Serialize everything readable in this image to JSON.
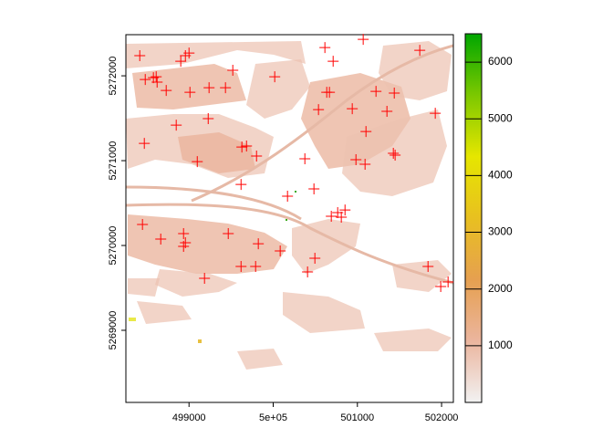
{
  "chart_data": {
    "type": "scatter",
    "marker": "+",
    "color": "#ff0000",
    "x": [
      498415,
      498480,
      498577,
      498621,
      498610,
      498729,
      498902,
      498957,
      499000,
      499011,
      499238,
      499433,
      499520,
      500018,
      500614,
      500712,
      500636,
      500668,
      500538,
      500939,
      501221,
      501438,
      501351,
      501741,
      501069,
      501925,
      498469,
      498848,
      499228,
      499098,
      499628,
      499683,
      499802,
      499618,
      500170,
      500376,
      500484,
      501102,
      500983,
      501091,
      501427,
      501448,
      498447,
      498664,
      498935,
      498957,
      498935,
      499466,
      499823,
      500083,
      500495,
      499618,
      499791,
      500408,
      499184,
      500690,
      500766,
      500809,
      501839,
      501990,
      502077,
      500853
    ],
    "values": [
      5272237,
      5271957,
      5271978,
      5271925,
      5271989,
      5271828,
      5272172,
      5272237,
      5272269,
      5271806,
      5271860,
      5271860,
      5272065,
      5271989,
      5272333,
      5272172,
      5271806,
      5271806,
      5271602,
      5271613,
      5271817,
      5271796,
      5271581,
      5272301,
      5272430,
      5271559,
      5271204,
      5271419,
      5271495,
      5270989,
      5271161,
      5271172,
      5271054,
      5270720,
      5270581,
      5271022,
      5270667,
      5271344,
      5271011,
      5270957,
      5271086,
      5271065,
      5270247,
      5270075,
      5270140,
      5270032,
      5269989,
      5270140,
      5270021,
      5269935,
      5269849,
      5269753,
      5269753,
      5269688,
      5269613,
      5270344,
      5270387,
      5270333,
      5269753,
      5269516,
      5269570,
      5270419
    ],
    "xlim": [
      498250,
      502140
    ],
    "ylim": [
      5268150,
      5272485
    ],
    "xticks": [
      499000,
      {
        "value": 500000,
        "label": "5e+05"
      },
      501000,
      502000
    ],
    "yticks": [
      5269000,
      5270000,
      5271000,
      5272000
    ],
    "colorbar": {
      "zlim": [
        0,
        6500
      ],
      "ticks": [
        1000,
        2000,
        3000,
        4000,
        5000,
        6000
      ],
      "colors": [
        "#f2f2f2",
        "#ebb59e",
        "#e6a050",
        "#e8c020",
        "#e6e600",
        "#7cc800",
        "#00a600"
      ]
    }
  }
}
